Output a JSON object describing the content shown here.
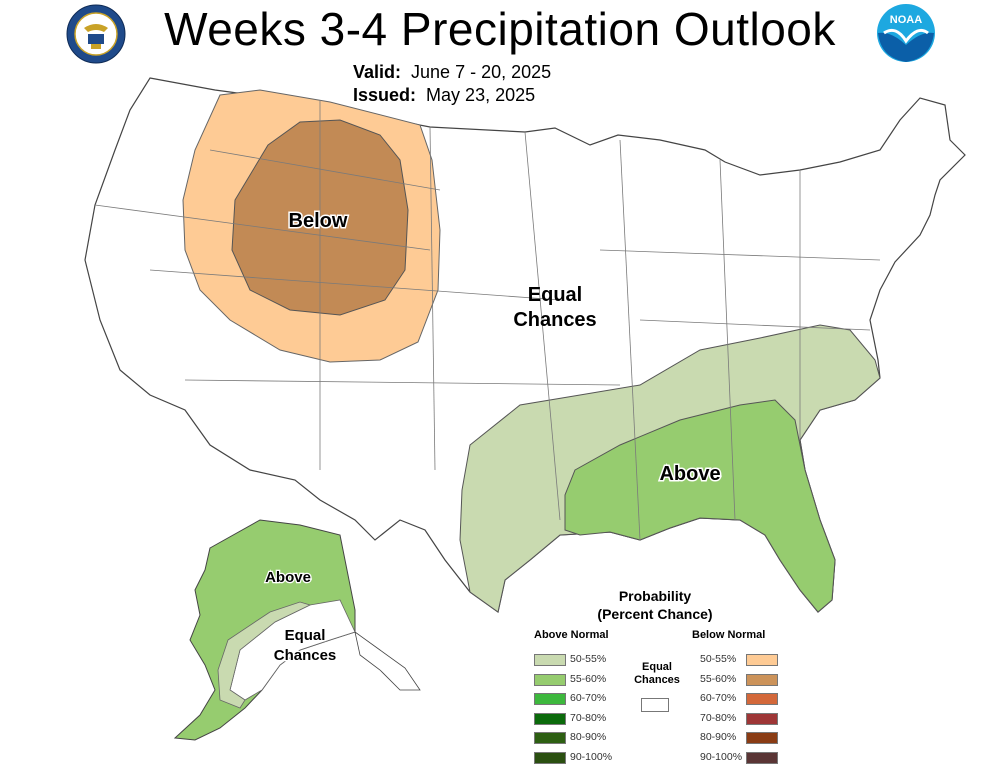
{
  "header": {
    "title": "Weeks 3-4 Precipitation Outlook",
    "valid_label": "Valid:",
    "valid_value": "June 7 - 20, 2025",
    "issued_label": "Issued:",
    "issued_value": "May 23, 2025"
  },
  "logos": {
    "left": "commerce-seal-icon",
    "right": "noaa-logo-icon",
    "noaa_text": "NOAA"
  },
  "map_labels": {
    "below": "Below",
    "equal_line1": "Equal",
    "equal_line2": "Chances",
    "above_se": "Above",
    "alaska_above": "Above",
    "alaska_equal_line1": "Equal",
    "alaska_equal_line2": "Chances"
  },
  "legend": {
    "title_line1": "Probability",
    "title_line2": "(Percent Chance)",
    "above_header": "Above Normal",
    "below_header": "Below Normal",
    "equal_line1": "Equal",
    "equal_line2": "Chances",
    "above_rows": [
      {
        "label": "50-55%",
        "color": "#c9dab0"
      },
      {
        "label": "55-60%",
        "color": "#96cc6f"
      },
      {
        "label": "60-70%",
        "color": "#3db83d"
      },
      {
        "label": "70-80%",
        "color": "#0b6a0b"
      },
      {
        "label": "80-90%",
        "color": "#2d5f12"
      },
      {
        "label": "90-100%",
        "color": "#2a4f10"
      }
    ],
    "below_rows": [
      {
        "label": "50-55%",
        "color": "#fecb95"
      },
      {
        "label": "55-60%",
        "color": "#cc935a"
      },
      {
        "label": "60-70%",
        "color": "#d3683a"
      },
      {
        "label": "70-80%",
        "color": "#9e3636"
      },
      {
        "label": "80-90%",
        "color": "#8a3c14"
      },
      {
        "label": "90-100%",
        "color": "#5a3535"
      }
    ]
  },
  "colors": {
    "above_light": "#c9dab0",
    "above_mid": "#96cc6f",
    "below_light": "#fecb95",
    "below_mid": "#c28a55",
    "border": "#555555"
  }
}
